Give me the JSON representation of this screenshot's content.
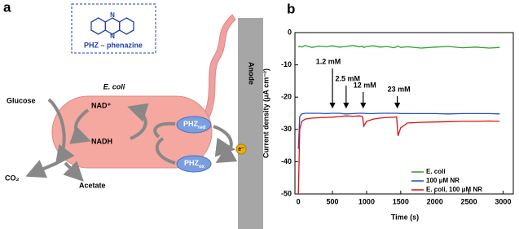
{
  "panel_a": {
    "label": "a",
    "box_title": "PHZ – phenazine",
    "atoms": [
      "N",
      "N"
    ],
    "cell": "E. coli",
    "glucose": "Glucose",
    "nad": "NAD⁺",
    "nadh": "NADH",
    "co2": "CO₂",
    "acetate": "Acetate",
    "phz_red": {
      "base": "PHZ",
      "sub": "red"
    },
    "phz_ox": {
      "base": "PHZ",
      "sub": "ox"
    },
    "anode": "Anode",
    "electron": "e⁻"
  },
  "chart_data": {
    "type": "line",
    "panel_label": "b",
    "x_label": "Time (s)",
    "y_label": "Current density (μA cm⁻²)",
    "x": [
      0,
      20,
      50,
      100,
      200,
      300,
      400,
      500,
      600,
      700,
      800,
      900,
      940,
      960,
      1000,
      1100,
      1200,
      1300,
      1400,
      1440,
      1460,
      1500,
      1600,
      1800,
      2000,
      2200,
      2400,
      2600,
      2800,
      2950
    ],
    "series": [
      {
        "name": "E. coli",
        "color": "#2ca02c",
        "values": [
          -4.5,
          -4.2,
          -4.5,
          -4.0,
          -4.6,
          -4.2,
          -4.4,
          -4.1,
          -4.5,
          -4.3,
          -4.0,
          -4.4,
          -4.2,
          -4.6,
          -4.3,
          -4.1,
          -4.5,
          -4.3,
          -4.7,
          -4.4,
          -4.2,
          -4.6,
          -4.4,
          -4.8,
          -4.5,
          -4.3,
          -4.7,
          -4.5,
          -4.8,
          -4.6
        ]
      },
      {
        "name": "100 μM NR",
        "color": "#1f4fbf",
        "values": [
          -36,
          -26,
          -25.2,
          -25,
          -25,
          -25,
          -25.1,
          -25,
          -25,
          -25.2,
          -25.1,
          -25,
          -25,
          -25,
          -25.1,
          -25.1,
          -25,
          -25,
          -25,
          -25,
          -25,
          -25.1,
          -25.1,
          -25.1,
          -25.1,
          -25.2,
          -25.1,
          -25.1,
          -25.1,
          -25.2
        ]
      },
      {
        "name": "E. coli, 100 μM NR",
        "color": "#e01010",
        "values": [
          -50,
          -30,
          -27.5,
          -26.8,
          -26.5,
          -26.4,
          -26.3,
          -26.2,
          -26,
          -25.8,
          -25.9,
          -25.8,
          -26,
          -29,
          -27.5,
          -26.8,
          -26.5,
          -26.3,
          -26.2,
          -26.1,
          -32,
          -29.5,
          -28,
          -27.8,
          -27.7,
          -27.6,
          -27.5,
          -27.5,
          -27.4,
          -27.5
        ]
      }
    ],
    "annotations": [
      {
        "text": "1.2 mM",
        "x": 500
      },
      {
        "text": "2.5 mM",
        "x": 700
      },
      {
        "text": "12 mM",
        "x": 950
      },
      {
        "text": "23 mM",
        "x": 1450
      }
    ],
    "xlim": [
      -50,
      3150
    ],
    "ylim": [
      -50,
      0
    ],
    "xticks": [
      0,
      500,
      1000,
      1500,
      2000,
      2500,
      3000
    ],
    "yticks": [
      -50,
      -40,
      -30,
      -20,
      -10,
      0
    ],
    "legend": "lower right"
  }
}
